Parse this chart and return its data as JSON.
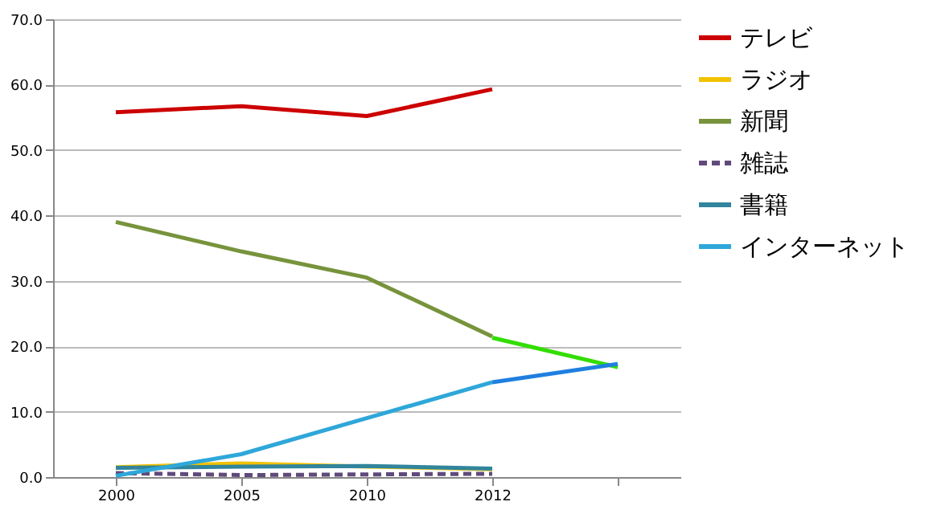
{
  "chart_data": {
    "type": "line",
    "categories": [
      "2000",
      "2005",
      "2010",
      "2012",
      null
    ],
    "ylim": [
      0,
      70
    ],
    "yticks": [
      {
        "value": 0,
        "label": "0.0"
      },
      {
        "value": 10,
        "label": "10.0"
      },
      {
        "value": 20,
        "label": "20.0"
      },
      {
        "value": 30,
        "label": "30.0"
      },
      {
        "value": 40,
        "label": "40.0"
      },
      {
        "value": 50,
        "label": "50.0"
      },
      {
        "value": 60,
        "label": "60.0"
      },
      {
        "value": 70,
        "label": "70.0"
      }
    ],
    "grid": "y",
    "legend": "right",
    "series": [
      {
        "name": "テレビ",
        "color": "#cc0000",
        "values": [
          55.8,
          56.7,
          55.2,
          59.3,
          null
        ]
      },
      {
        "name": "ラジオ",
        "color": "#f2c200",
        "values": [
          1.5,
          2.1,
          1.6,
          1.2,
          null
        ]
      },
      {
        "name": "新聞",
        "color": "#77933c",
        "values": [
          39.0,
          34.5,
          30.5,
          21.5,
          null
        ]
      },
      {
        "name": "雑誌",
        "color": "#604a7b",
        "line_style": "dashed",
        "values": [
          0.6,
          0.3,
          0.4,
          0.5,
          null
        ]
      },
      {
        "name": "書籍",
        "color": "#31859c",
        "values": [
          1.4,
          1.6,
          1.7,
          1.3,
          null
        ]
      },
      {
        "name": "インターネット",
        "color": "#2ea7d9",
        "values": [
          0.2,
          3.5,
          9.0,
          14.5,
          null
        ]
      },
      {
        "color": "#33dd00",
        "values": [
          null,
          null,
          null,
          21.3,
          16.8
        ]
      },
      {
        "color": "#1f7fe0",
        "values": [
          null,
          null,
          null,
          14.5,
          17.3
        ]
      }
    ]
  }
}
